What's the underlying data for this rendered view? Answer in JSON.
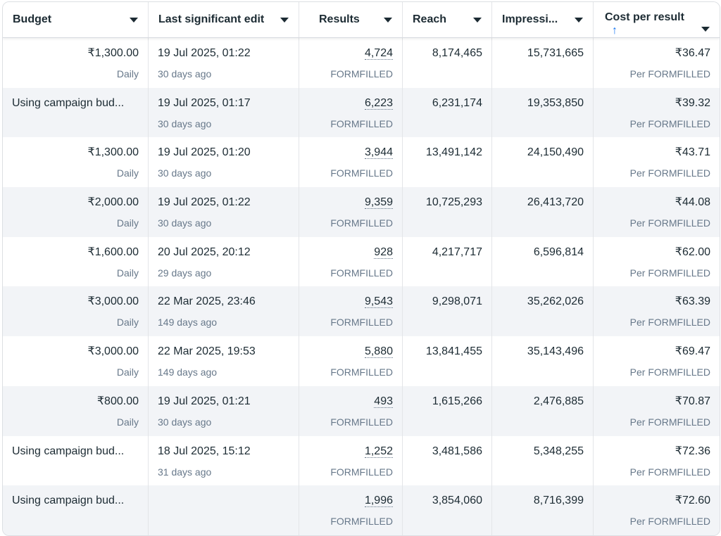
{
  "columns": {
    "budget": "Budget",
    "last_edit": "Last significant edit",
    "results": "Results",
    "reach": "Reach",
    "impressions": "Impressi...",
    "cost": "Cost per result",
    "sort_icon": "arrow-up-icon",
    "menu_icon": "caret-down-icon"
  },
  "rows": [
    {
      "budget": "₹1,300.00",
      "budget_sub": "Daily",
      "edit": "19 Jul 2025, 01:22",
      "edit_sub": "30 days ago",
      "results": "4,724",
      "results_sub": "FORMFILLED",
      "reach": "8,174,465",
      "impressions": "15,731,665",
      "cost": "₹36.47",
      "cost_sub": "Per FORMFILLED"
    },
    {
      "budget": "Using campaign bud...",
      "budget_sub": "",
      "edit": "19 Jul 2025, 01:17",
      "edit_sub": "30 days ago",
      "results": "6,223",
      "results_sub": "FORMFILLED",
      "reach": "6,231,174",
      "impressions": "19,353,850",
      "cost": "₹39.32",
      "cost_sub": "Per FORMFILLED"
    },
    {
      "budget": "₹1,300.00",
      "budget_sub": "Daily",
      "edit": "19 Jul 2025, 01:20",
      "edit_sub": "30 days ago",
      "results": "3,944",
      "results_sub": "FORMFILLED",
      "reach": "13,491,142",
      "impressions": "24,150,490",
      "cost": "₹43.71",
      "cost_sub": "Per FORMFILLED"
    },
    {
      "budget": "₹2,000.00",
      "budget_sub": "Daily",
      "edit": "19 Jul 2025, 01:22",
      "edit_sub": "30 days ago",
      "results": "9,359",
      "results_sub": "FORMFILLED",
      "reach": "10,725,293",
      "impressions": "26,413,720",
      "cost": "₹44.08",
      "cost_sub": "Per FORMFILLED"
    },
    {
      "budget": "₹1,600.00",
      "budget_sub": "Daily",
      "edit": "20 Jul 2025, 20:12",
      "edit_sub": "29 days ago",
      "results": "928",
      "results_sub": "FORMFILLED",
      "reach": "4,217,717",
      "impressions": "6,596,814",
      "cost": "₹62.00",
      "cost_sub": "Per FORMFILLED"
    },
    {
      "budget": "₹3,000.00",
      "budget_sub": "Daily",
      "edit": "22 Mar 2025, 23:46",
      "edit_sub": "149 days ago",
      "results": "9,543",
      "results_sub": "FORMFILLED",
      "reach": "9,298,071",
      "impressions": "35,262,026",
      "cost": "₹63.39",
      "cost_sub": "Per FORMFILLED"
    },
    {
      "budget": "₹3,000.00",
      "budget_sub": "Daily",
      "edit": "22 Mar 2025, 19:53",
      "edit_sub": "149 days ago",
      "results": "5,880",
      "results_sub": "FORMFILLED",
      "reach": "13,841,455",
      "impressions": "35,143,496",
      "cost": "₹69.47",
      "cost_sub": "Per FORMFILLED"
    },
    {
      "budget": "₹800.00",
      "budget_sub": "Daily",
      "edit": "19 Jul 2025, 01:21",
      "edit_sub": "30 days ago",
      "results": "493",
      "results_sub": "FORMFILLED",
      "reach": "1,615,266",
      "impressions": "2,476,885",
      "cost": "₹70.87",
      "cost_sub": "Per FORMFILLED"
    },
    {
      "budget": "Using campaign bud...",
      "budget_sub": "",
      "edit": "18 Jul 2025, 15:12",
      "edit_sub": "31 days ago",
      "results": "1,252",
      "results_sub": "FORMFILLED",
      "reach": "3,481,586",
      "impressions": "5,348,255",
      "cost": "₹72.36",
      "cost_sub": "Per FORMFILLED"
    },
    {
      "budget": "Using campaign bud...",
      "budget_sub": "",
      "edit": "",
      "edit_sub": "",
      "results": "1,996",
      "results_sub": "FORMFILLED",
      "reach": "3,854,060",
      "impressions": "8,716,399",
      "cost": "₹72.60",
      "cost_sub": "Per FORMFILLED"
    }
  ]
}
